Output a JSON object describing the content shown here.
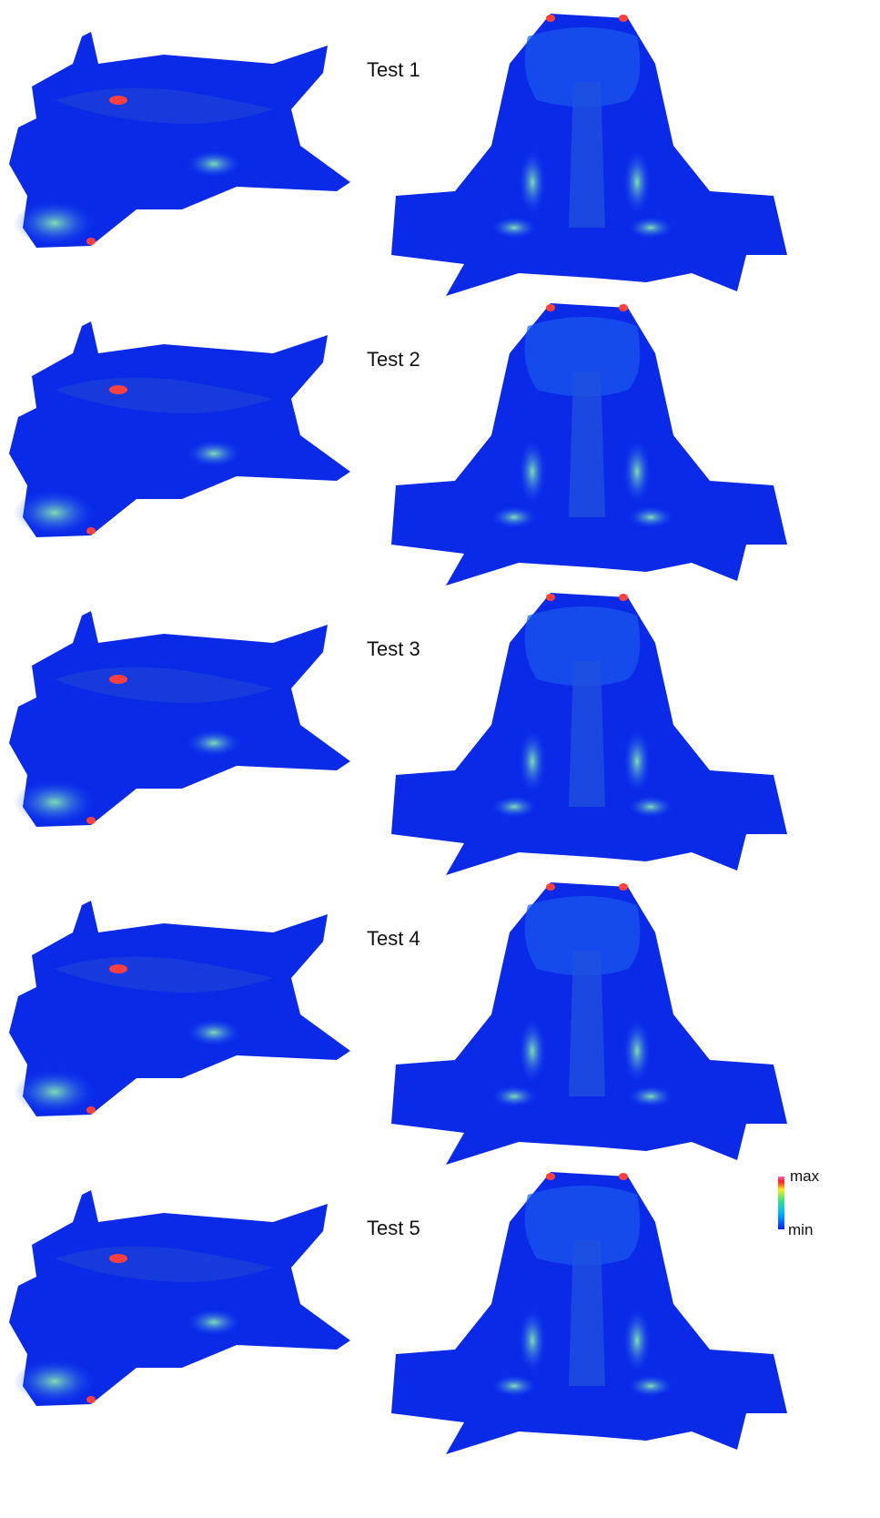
{
  "panels": [
    {
      "label": "Test 1"
    },
    {
      "label": "Test 2"
    },
    {
      "label": "Test 3"
    },
    {
      "label": "Test 4"
    },
    {
      "label": "Test 5"
    }
  ],
  "legend": {
    "max": "max",
    "min": "min"
  }
}
